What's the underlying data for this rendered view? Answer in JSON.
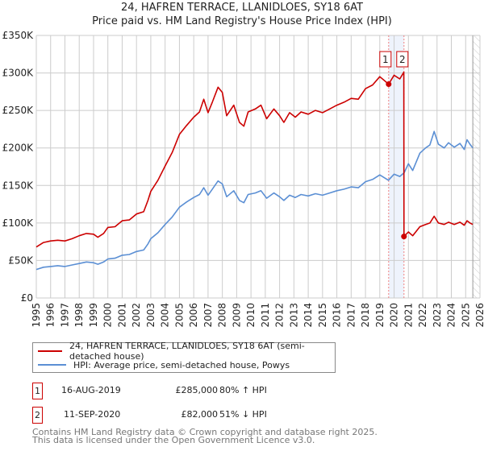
{
  "chart_data": {
    "type": "line",
    "title": "24, HAFREN TERRACE, LLANIDLOES, SY18 6AT",
    "subtitle": "Price paid vs. HM Land Registry's House Price Index (HPI)",
    "xlim": [
      1995,
      2026
    ],
    "ylim": [
      0,
      350000
    ],
    "x_ticks": [
      "1995",
      "1996",
      "1997",
      "1998",
      "1999",
      "2000",
      "2001",
      "2002",
      "2003",
      "2004",
      "2005",
      "2006",
      "2007",
      "2008",
      "2009",
      "2010",
      "2011",
      "2012",
      "2013",
      "2014",
      "2015",
      "2016",
      "2017",
      "2018",
      "2019",
      "2020",
      "2021",
      "2022",
      "2023",
      "2024",
      "2025",
      "2026"
    ],
    "y_ticks": [
      {
        "v": 0,
        "label": "£0"
      },
      {
        "v": 50000,
        "label": "£50K"
      },
      {
        "v": 100000,
        "label": "£100K"
      },
      {
        "v": 150000,
        "label": "£150K"
      },
      {
        "v": 200000,
        "label": "£200K"
      },
      {
        "v": 250000,
        "label": "£250K"
      },
      {
        "v": 300000,
        "label": "£300K"
      },
      {
        "v": 350000,
        "label": "£350K"
      }
    ],
    "grid": true,
    "forecast_hatch_from": 2025.5,
    "series": [
      {
        "name": "24, HAFREN TERRACE, LLANIDLOES, SY18 6AT (semi-detached house)",
        "color": "#cc0000",
        "x": [
          1995,
          1995.5,
          1996,
          1996.5,
          1997,
          1997.5,
          1998,
          1998.5,
          1999,
          1999.3,
          1999.7,
          2000,
          2000.5,
          2001,
          2001.5,
          2002,
          2002.5,
          2002.8,
          2003,
          2003.5,
          2004,
          2004.5,
          2005,
          2005.5,
          2006,
          2006.4,
          2006.7,
          2007,
          2007.3,
          2007.7,
          2008,
          2008.3,
          2008.8,
          2009.2,
          2009.5,
          2009.8,
          2010.3,
          2010.7,
          2011.1,
          2011.6,
          2012,
          2012.3,
          2012.7,
          2013.1,
          2013.5,
          2014,
          2014.5,
          2015,
          2015.5,
          2016,
          2016.5,
          2017,
          2017.5,
          2018,
          2018.5,
          2019,
          2019.62,
          2020,
          2020.4,
          2020.68,
          2020.69,
          2021,
          2021.3,
          2021.8,
          2022.2,
          2022.5,
          2022.8,
          2023.1,
          2023.5,
          2023.8,
          2024.2,
          2024.6,
          2024.9,
          2025.1,
          2025.3,
          2025.5
        ],
        "y": [
          68,
          74,
          76,
          77,
          76,
          79,
          83,
          86,
          85,
          81,
          86,
          94,
          95,
          103,
          104,
          112,
          115,
          130,
          142,
          157,
          176,
          194,
          218,
          230,
          241,
          248,
          265,
          247,
          261,
          281,
          274,
          243,
          257,
          234,
          229,
          248,
          252,
          257,
          239,
          252,
          243,
          234,
          247,
          241,
          248,
          245,
          250,
          247,
          252,
          257,
          261,
          266,
          265,
          279,
          284,
          295,
          285,
          297,
          292,
          301,
          82,
          88,
          83,
          95,
          98,
          100,
          109,
          100,
          98,
          101,
          98,
          101,
          97,
          103,
          100,
          98
        ]
      },
      {
        "name": "HPI: Average price, semi-detached house, Powys",
        "color": "#5b8fd4",
        "x": [
          1995,
          1995.5,
          1996,
          1996.5,
          1997,
          1997.5,
          1998,
          1998.5,
          1999,
          1999.3,
          1999.7,
          2000,
          2000.5,
          2001,
          2001.5,
          2002,
          2002.5,
          2002.8,
          2003,
          2003.5,
          2004,
          2004.5,
          2005,
          2005.5,
          2006,
          2006.4,
          2006.7,
          2007,
          2007.3,
          2007.7,
          2008,
          2008.3,
          2008.8,
          2009.2,
          2009.5,
          2009.8,
          2010.3,
          2010.7,
          2011.1,
          2011.6,
          2012,
          2012.3,
          2012.7,
          2013.1,
          2013.5,
          2014,
          2014.5,
          2015,
          2015.5,
          2016,
          2016.5,
          2017,
          2017.5,
          2018,
          2018.5,
          2019,
          2019.6,
          2020,
          2020.4,
          2020.7,
          2021,
          2021.3,
          2021.8,
          2022.2,
          2022.5,
          2022.8,
          2023.1,
          2023.5,
          2023.8,
          2024.2,
          2024.6,
          2024.9,
          2025.1,
          2025.3,
          2025.5
        ],
        "y": [
          38,
          41,
          42,
          43,
          42,
          44,
          46,
          48,
          47,
          45,
          48,
          52,
          53,
          57,
          58,
          62,
          64,
          72,
          79,
          87,
          98,
          108,
          121,
          128,
          134,
          138,
          147,
          137,
          145,
          156,
          152,
          135,
          143,
          130,
          127,
          138,
          140,
          143,
          133,
          140,
          135,
          130,
          137,
          134,
          138,
          136,
          139,
          137,
          140,
          143,
          145,
          148,
          147,
          155,
          158,
          164,
          157,
          165,
          162,
          167,
          179,
          170,
          193,
          200,
          204,
          222,
          205,
          200,
          207,
          201,
          206,
          198,
          211,
          205,
          200
        ]
      }
    ],
    "y_unit": "thousands GBP",
    "sales": [
      {
        "id": "1",
        "x": 2019.62,
        "price": 285000,
        "date": "16-AUG-2019",
        "price_label": "£285,000",
        "hpi_rel": "80% ↑ HPI"
      },
      {
        "id": "2",
        "x": 2020.69,
        "price": 82000,
        "date": "11-SEP-2020",
        "price_label": "£82,000",
        "hpi_rel": "51% ↓ HPI"
      }
    ]
  },
  "footer": {
    "line1": "Contains HM Land Registry data © Crown copyright and database right 2025.",
    "line2": "This data is licensed under the Open Government Licence v3.0."
  }
}
